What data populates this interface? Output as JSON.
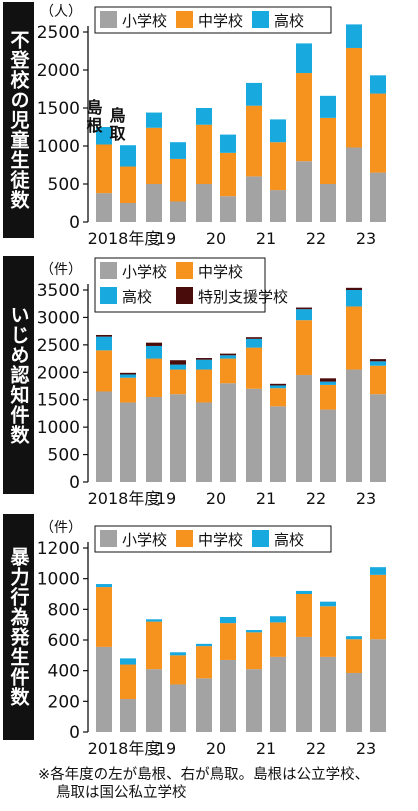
{
  "panel_titles": [
    "不登校の児童生徒数",
    "いじめ認知件数",
    "暴力行為発生件数"
  ],
  "region_labels": {
    "left": "島根",
    "right": "鳥取"
  },
  "note": {
    "line1": "※各年度の左が島根、右が鳥取。島根は公立学校、",
    "line2": "鳥取は国公私立学校"
  },
  "colors": {
    "elementary": "#a3a3a3",
    "junior_high": "#f6921e",
    "high": "#18a9df",
    "special": "#4a0b0b"
  },
  "chart_data": [
    {
      "type": "bar",
      "stacked": true,
      "title": "不登校の児童生徒数",
      "unit": "（人）",
      "xlabel": "",
      "ylabel": "",
      "categories": [
        "2018年度",
        "19",
        "20",
        "21",
        "22",
        "23"
      ],
      "sub_categories": [
        "島根",
        "鳥取"
      ],
      "ylim": [
        0,
        2500
      ],
      "yticks": [
        0,
        500,
        1000,
        1500,
        2000,
        2500
      ],
      "grid": false,
      "legend": [
        "小学校",
        "中学校",
        "高校"
      ],
      "series": [
        {
          "name": "小学校",
          "shimane": [
            380,
            500,
            500,
            600,
            800,
            980
          ],
          "tottori": [
            250,
            270,
            340,
            420,
            500,
            650
          ]
        },
        {
          "name": "中学校",
          "shimane": [
            640,
            740,
            780,
            930,
            1160,
            1310
          ],
          "tottori": [
            480,
            560,
            570,
            630,
            870,
            1040
          ]
        },
        {
          "name": "高校",
          "shimane": [
            230,
            200,
            220,
            300,
            390,
            310
          ],
          "tottori": [
            280,
            220,
            240,
            300,
            290,
            240
          ]
        }
      ]
    },
    {
      "type": "bar",
      "stacked": true,
      "title": "いじめ認知件数",
      "unit": "（件）",
      "xlabel": "",
      "ylabel": "",
      "categories": [
        "2018年度",
        "19",
        "20",
        "21",
        "22",
        "23"
      ],
      "sub_categories": [
        "島根",
        "鳥取"
      ],
      "ylim": [
        0,
        3500
      ],
      "yticks": [
        0,
        500,
        1000,
        1500,
        2000,
        2500,
        3000,
        3500
      ],
      "grid": false,
      "legend": [
        "小学校",
        "中学校",
        "高校",
        "特別支援学校"
      ],
      "series": [
        {
          "name": "小学校",
          "shimane": [
            1650,
            1550,
            1450,
            1700,
            1950,
            2050
          ],
          "tottori": [
            1450,
            1600,
            1800,
            1380,
            1320,
            1600
          ]
        },
        {
          "name": "中学校",
          "shimane": [
            750,
            700,
            600,
            750,
            1000,
            1150
          ],
          "tottori": [
            450,
            450,
            450,
            330,
            450,
            520
          ]
        },
        {
          "name": "高校",
          "shimane": [
            250,
            230,
            180,
            160,
            200,
            300
          ],
          "tottori": [
            60,
            90,
            60,
            50,
            60,
            80
          ]
        },
        {
          "name": "特別支援学校",
          "shimane": [
            30,
            60,
            30,
            30,
            30,
            40
          ],
          "tottori": [
            30,
            80,
            30,
            30,
            60,
            40
          ]
        }
      ]
    },
    {
      "type": "bar",
      "stacked": true,
      "title": "暴力行為発生件数",
      "unit": "（件）",
      "xlabel": "",
      "ylabel": "",
      "categories": [
        "2018年度",
        "19",
        "20",
        "21",
        "22",
        "23"
      ],
      "sub_categories": [
        "島根",
        "鳥取"
      ],
      "ylim": [
        0,
        1200
      ],
      "yticks": [
        0,
        200,
        400,
        600,
        800,
        1000,
        1200
      ],
      "grid": false,
      "legend": [
        "小学校",
        "中学校",
        "高校"
      ],
      "series": [
        {
          "name": "小学校",
          "shimane": [
            555,
            410,
            350,
            410,
            620,
            385
          ],
          "tottori": [
            215,
            310,
            470,
            490,
            490,
            605
          ]
        },
        {
          "name": "中学校",
          "shimane": [
            390,
            310,
            210,
            240,
            280,
            220
          ],
          "tottori": [
            225,
            190,
            240,
            225,
            330,
            420
          ]
        },
        {
          "name": "高校",
          "shimane": [
            20,
            15,
            15,
            15,
            20,
            20
          ],
          "tottori": [
            40,
            20,
            40,
            40,
            30,
            50
          ]
        }
      ]
    }
  ]
}
